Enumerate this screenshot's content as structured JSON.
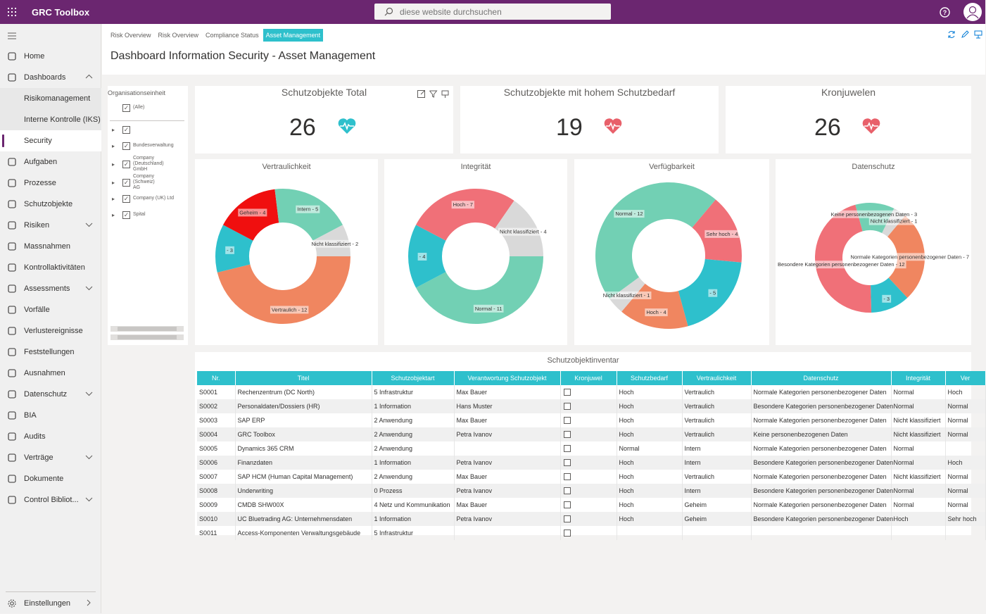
{
  "app": {
    "title": "GRC Toolbox",
    "search_placeholder": "diese website durchsuchen"
  },
  "sidebar": {
    "items": [
      {
        "label": "Home",
        "icon": "home-icon"
      },
      {
        "label": "Dashboards",
        "icon": "dashboard-icon",
        "expanded": true
      },
      {
        "label": "Risikomanagement",
        "sub": true
      },
      {
        "label": "Interne Kontrolle (IKS)",
        "sub": true
      },
      {
        "label": "Security",
        "sub": true,
        "active": true
      },
      {
        "label": "Aufgaben",
        "icon": "task-icon"
      },
      {
        "label": "Prozesse",
        "icon": "process-icon"
      },
      {
        "label": "Schutzobjekte",
        "icon": "asset-icon"
      },
      {
        "label": "Risiken",
        "icon": "risk-icon",
        "expandable": true
      },
      {
        "label": "Massnahmen",
        "icon": "list-icon"
      },
      {
        "label": "Kontrollaktivitäten",
        "icon": "control-icon"
      },
      {
        "label": "Assessments",
        "icon": "assessment-icon",
        "expandable": true
      },
      {
        "label": "Vorfälle",
        "icon": "shield-icon"
      },
      {
        "label": "Verlustereignisse",
        "icon": "loss-icon"
      },
      {
        "label": "Feststellungen",
        "icon": "finding-icon"
      },
      {
        "label": "Ausnahmen",
        "icon": "exception-icon"
      },
      {
        "label": "Datenschutz",
        "icon": "privacy-icon",
        "expandable": true
      },
      {
        "label": "BIA",
        "icon": "bia-icon"
      },
      {
        "label": "Audits",
        "icon": "audit-icon"
      },
      {
        "label": "Verträge",
        "icon": "contract-icon",
        "expandable": true
      },
      {
        "label": "Dokumente",
        "icon": "document-icon"
      },
      {
        "label": "Control Bibliot...",
        "icon": "library-icon",
        "expandable": true
      }
    ],
    "settings": "Einstellungen"
  },
  "tabs": [
    "Risk Overview",
    "Risk Overview",
    "Compliance Status",
    "Asset Management"
  ],
  "active_tab": 3,
  "page_title": "Dashboard Information Security - Asset Management",
  "filter": {
    "title": "Organisationseinheit",
    "items": [
      "(Alle)",
      "",
      "Bundesverwaltung",
      "Company (Deutschland) GmbH",
      "Company (Schweiz) AG",
      "Company (UK) Ltd",
      "Spital"
    ]
  },
  "kpis": [
    {
      "title": "Schutzobjekte Total",
      "value": "26",
      "heart_color": "#2ec0cc"
    },
    {
      "title": "Schutzobjekte mit hohem Schutzbedarf",
      "value": "19",
      "heart_color": "#e8606a"
    },
    {
      "title": "Kronjuwelen",
      "value": "26",
      "heart_color": "#e8606a"
    }
  ],
  "chart_data": [
    {
      "type": "pie",
      "title": "Vertraulichkeit",
      "donut": true,
      "slices": [
        {
          "label": "Vertraulich - 12",
          "value": 12,
          "color": "#f08660"
        },
        {
          "label": "- 3",
          "value": 3,
          "color": "#2ec0cc"
        },
        {
          "label": "Geheim - 4",
          "value": 4,
          "color": "#f00f0f"
        },
        {
          "label": "Intern - 5",
          "value": 5,
          "color": "#72d0b4"
        },
        {
          "label": "Nicht klassifiziert - 2",
          "value": 2,
          "color": "#d9d9d9"
        }
      ]
    },
    {
      "type": "pie",
      "title": "Integrität",
      "donut": true,
      "slices": [
        {
          "label": "Normal - 11",
          "value": 11,
          "color": "#72d0b4"
        },
        {
          "label": "- 4",
          "value": 4,
          "color": "#2ec0cc"
        },
        {
          "label": "Hoch - 7",
          "value": 7,
          "color": "#f07078"
        },
        {
          "label": "Nicht klassifiziert - 4",
          "value": 4,
          "color": "#d9d9d9"
        }
      ]
    },
    {
      "type": "pie",
      "title": "Verfügbarkeit",
      "donut": true,
      "slices": [
        {
          "label": "Sehr hoch - 4",
          "value": 4,
          "color": "#f07078"
        },
        {
          "label": "- 5",
          "value": 5,
          "color": "#2ec0cc"
        },
        {
          "label": "Hoch - 4",
          "value": 4,
          "color": "#f08660"
        },
        {
          "label": "Nicht klassifiziert - 1",
          "value": 1,
          "color": "#d9d9d9"
        },
        {
          "label": "Normal - 12",
          "value": 12,
          "color": "#72d0b4"
        }
      ]
    },
    {
      "type": "pie",
      "title": "Datenschutz",
      "donut": true,
      "slices": [
        {
          "label": "Normale Kategorien personenbezogener Daten - 7",
          "value": 7,
          "color": "#f08660"
        },
        {
          "label": "- 3",
          "value": 3,
          "color": "#2ec0cc"
        },
        {
          "label": "Besondere Kategorien personenbezogener Daten - 12",
          "value": 12,
          "color": "#f07078"
        },
        {
          "label": "Keine personenbezogenen Daten - 3",
          "value": 3,
          "color": "#72d0b4"
        },
        {
          "label": "Nicht klassifiziert - 1",
          "value": 1,
          "color": "#d9d9d9"
        }
      ]
    }
  ],
  "table": {
    "title": "Schutzobjektinventar",
    "columns": [
      "Nr.",
      "Titel",
      "Schutzobjektart",
      "Verantwortung Schutzobjekt",
      "Kronjuwel",
      "Schutzbedarf",
      "Vertraulichkeit",
      "Datenschutz",
      "Integrität",
      "Ver"
    ],
    "rows": [
      [
        "S0001",
        "Rechenzentrum (DC North)",
        "5 Infrastruktur",
        "Max Bauer",
        "",
        "Hoch",
        "Vertraulich",
        "Normale Kategorien personenbezogener Daten",
        "Normal",
        "Hoch"
      ],
      [
        "S0002",
        "Personaldaten/Dossiers (HR)",
        "1 Information",
        "Hans Muster",
        "",
        "Hoch",
        "Vertraulich",
        "Besondere Kategorien personenbezogener Daten",
        "Normal",
        "Normal"
      ],
      [
        "S0003",
        "SAP ERP",
        "2 Anwendung",
        "Max Bauer",
        "",
        "Hoch",
        "Vertraulich",
        "Normale Kategorien personenbezogener Daten",
        "Nicht klassifiziert",
        "Normal"
      ],
      [
        "S0004",
        "GRC Toolbox",
        "2 Anwendung",
        "Petra Ivanov",
        "",
        "Hoch",
        "Vertraulich",
        "Keine personenbezogenen Daten",
        "Nicht klassifiziert",
        "Normal"
      ],
      [
        "S0005",
        "Dynamics 365 CRM",
        "2 Anwendung",
        "",
        "",
        "Normal",
        "Intern",
        "Normale Kategorien personenbezogener Daten",
        "Normal",
        ""
      ],
      [
        "S0006",
        "Finanzdaten",
        "1 Information",
        "Petra Ivanov",
        "",
        "Hoch",
        "Intern",
        "Besondere Kategorien personenbezogener Daten",
        "Normal",
        "Hoch"
      ],
      [
        "S0007",
        "SAP HCM (Human Capital Management)",
        "2 Anwendung",
        "Max Bauer",
        "",
        "Hoch",
        "Vertraulich",
        "Normale Kategorien personenbezogener Daten",
        "Nicht klassifiziert",
        "Normal"
      ],
      [
        "S0008",
        "Underwriting",
        "0 Prozess",
        "Petra Ivanov",
        "",
        "Hoch",
        "Intern",
        "Besondere Kategorien personenbezogener Daten",
        "Normal",
        "Normal"
      ],
      [
        "S0009",
        "CMDB SHW00X",
        "4 Netz und Kommunikation",
        "Max Bauer",
        "",
        "Hoch",
        "Geheim",
        "Normale Kategorien personenbezogener Daten",
        "Normal",
        "Normal"
      ],
      [
        "S0010",
        "UC Bluetrading AG: Unternehmensdaten",
        "1 Information",
        "Petra Ivanov",
        "",
        "Hoch",
        "Geheim",
        "Besondere Kategorien personenbezogener Daten",
        "Hoch",
        "Sehr hoch"
      ],
      [
        "S0011",
        "Access-Komponenten Verwaltungsgebäude",
        "5 Infrastruktur",
        "",
        "",
        "",
        "",
        "",
        "",
        ""
      ]
    ]
  }
}
